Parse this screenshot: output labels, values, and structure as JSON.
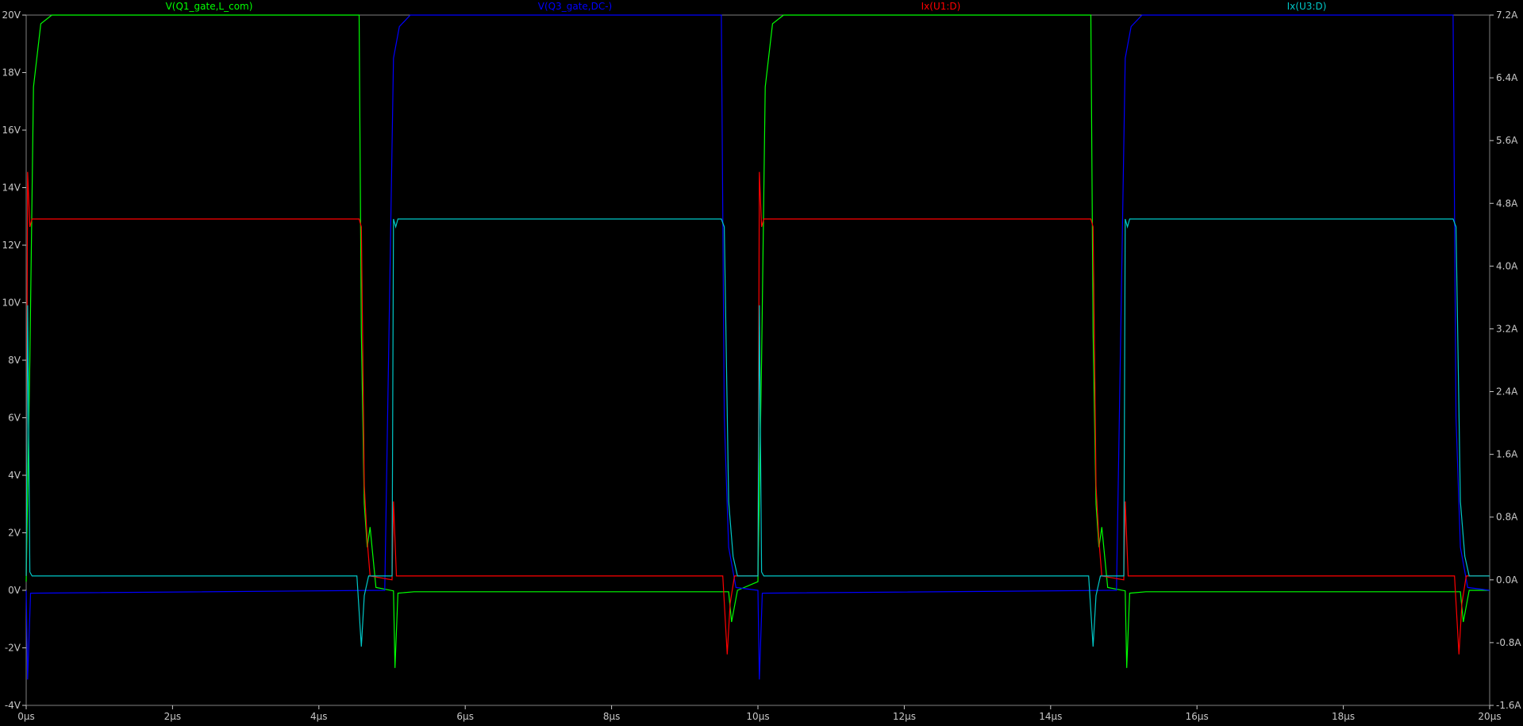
{
  "window": {
    "background": "#000000"
  },
  "chart_data": {
    "type": "line",
    "grid": false,
    "legend_placement": "top",
    "x_axis": {
      "range": [
        0,
        20
      ],
      "unit": "µs",
      "ticks": [
        0,
        2,
        4,
        6,
        8,
        10,
        12,
        14,
        16,
        18,
        20
      ],
      "tick_labels": [
        "0µs",
        "2µs",
        "4µs",
        "6µs",
        "8µs",
        "10µs",
        "12µs",
        "14µs",
        "16µs",
        "18µs",
        "20µs"
      ]
    },
    "y_left": {
      "range": [
        -4,
        20
      ],
      "ticks": [
        -4,
        -2,
        0,
        2,
        4,
        6,
        8,
        10,
        12,
        14,
        16,
        18,
        20
      ],
      "tick_labels": [
        "-4V",
        "-2V",
        "0V",
        "2V",
        "4V",
        "6V",
        "8V",
        "10V",
        "12V",
        "14V",
        "16V",
        "18V",
        "20V"
      ]
    },
    "y_right": {
      "range": [
        -1.6,
        7.2
      ],
      "ticks": [
        -1.6,
        -0.8,
        0.0,
        0.8,
        1.6,
        2.4,
        3.2,
        4.0,
        4.8,
        5.6,
        6.4,
        7.2
      ],
      "tick_labels": [
        "-1.6A",
        "-0.8A",
        "0.0A",
        "0.8A",
        "1.6A",
        "2.4A",
        "3.2A",
        "4.0A",
        "4.8A",
        "5.6A",
        "6.4A",
        "7.2A"
      ]
    },
    "series": [
      {
        "name": "V(Q1_gate,L_com)",
        "color": "#00ff00",
        "axis": "left",
        "points": [
          [
            0,
            0.3
          ],
          [
            0.05,
            8
          ],
          [
            0.1,
            17.5
          ],
          [
            0.2,
            19.7
          ],
          [
            0.35,
            20
          ],
          [
            4.55,
            20
          ],
          [
            4.58,
            9
          ],
          [
            4.62,
            3
          ],
          [
            4.66,
            1.5
          ],
          [
            4.7,
            2.2
          ],
          [
            4.78,
            0.1
          ],
          [
            5.02,
            -0.02
          ],
          [
            5.04,
            -2.7
          ],
          [
            5.08,
            -0.1
          ],
          [
            5.3,
            -0.05
          ],
          [
            9.6,
            -0.05
          ],
          [
            9.64,
            -1.1
          ],
          [
            9.72,
            0
          ],
          [
            10.0,
            0.3
          ],
          [
            10.05,
            8
          ],
          [
            10.1,
            17.5
          ],
          [
            10.2,
            19.7
          ],
          [
            10.35,
            20
          ],
          [
            14.55,
            20
          ],
          [
            14.58,
            9
          ],
          [
            14.62,
            3
          ],
          [
            14.66,
            1.5
          ],
          [
            14.7,
            2.2
          ],
          [
            14.78,
            0.1
          ],
          [
            15.02,
            -0.02
          ],
          [
            15.04,
            -2.7
          ],
          [
            15.08,
            -0.1
          ],
          [
            15.3,
            -0.05
          ],
          [
            19.6,
            -0.05
          ],
          [
            19.64,
            -1.1
          ],
          [
            19.72,
            0
          ],
          [
            20,
            0
          ]
        ]
      },
      {
        "name": "V(Q3_gate,DC-)",
        "color": "#0000ff",
        "axis": "left",
        "points": [
          [
            0,
            0
          ],
          [
            0.02,
            -3.1
          ],
          [
            0.06,
            -0.1
          ],
          [
            4.9,
            0
          ],
          [
            5.02,
            18.5
          ],
          [
            5.1,
            19.6
          ],
          [
            5.25,
            20
          ],
          [
            9.5,
            20
          ],
          [
            9.54,
            6
          ],
          [
            9.6,
            1.5
          ],
          [
            9.7,
            0.1
          ],
          [
            10.0,
            0
          ],
          [
            10.02,
            -3.1
          ],
          [
            10.06,
            -0.1
          ],
          [
            14.9,
            0
          ],
          [
            15.02,
            18.5
          ],
          [
            15.1,
            19.6
          ],
          [
            15.25,
            20
          ],
          [
            19.5,
            20
          ],
          [
            19.54,
            6
          ],
          [
            19.6,
            1.5
          ],
          [
            19.7,
            0.1
          ],
          [
            20,
            0
          ]
        ]
      },
      {
        "name": "Ix(U1:D)",
        "color": "#ff0000",
        "axis": "right",
        "points": [
          [
            0,
            0.05
          ],
          [
            0.02,
            5.2
          ],
          [
            0.05,
            4.5
          ],
          [
            0.08,
            4.6
          ],
          [
            4.55,
            4.6
          ],
          [
            4.58,
            4.5
          ],
          [
            4.62,
            1.2
          ],
          [
            4.66,
            0.5
          ],
          [
            4.7,
            0.05
          ],
          [
            5.0,
            0.0
          ],
          [
            5.02,
            1.0
          ],
          [
            5.06,
            0.05
          ],
          [
            9.52,
            0.05
          ],
          [
            9.58,
            -0.95
          ],
          [
            9.62,
            -0.3
          ],
          [
            9.68,
            0.05
          ],
          [
            10.0,
            0.05
          ],
          [
            10.02,
            5.2
          ],
          [
            10.05,
            4.5
          ],
          [
            10.08,
            4.6
          ],
          [
            14.55,
            4.6
          ],
          [
            14.58,
            4.5
          ],
          [
            14.62,
            1.2
          ],
          [
            14.66,
            0.5
          ],
          [
            14.7,
            0.05
          ],
          [
            15.0,
            0.0
          ],
          [
            15.02,
            1.0
          ],
          [
            15.06,
            0.05
          ],
          [
            19.52,
            0.05
          ],
          [
            19.58,
            -0.95
          ],
          [
            19.62,
            -0.3
          ],
          [
            19.68,
            0.05
          ],
          [
            20,
            0.05
          ]
        ]
      },
      {
        "name": "Ix(U3:D)",
        "color": "#00c8c8",
        "axis": "right",
        "points": [
          [
            0,
            0.05
          ],
          [
            0.02,
            3.5
          ],
          [
            0.05,
            0.1
          ],
          [
            0.08,
            0.05
          ],
          [
            4.52,
            0.05
          ],
          [
            4.58,
            -0.85
          ],
          [
            4.62,
            -0.2
          ],
          [
            4.68,
            0.05
          ],
          [
            5.0,
            0.05
          ],
          [
            5.02,
            4.6
          ],
          [
            5.05,
            4.5
          ],
          [
            5.08,
            4.6
          ],
          [
            9.5,
            4.6
          ],
          [
            9.54,
            4.5
          ],
          [
            9.6,
            1.0
          ],
          [
            9.66,
            0.3
          ],
          [
            9.72,
            0.05
          ],
          [
            10.0,
            0.05
          ],
          [
            10.02,
            3.5
          ],
          [
            10.05,
            0.1
          ],
          [
            10.08,
            0.05
          ],
          [
            14.52,
            0.05
          ],
          [
            14.58,
            -0.85
          ],
          [
            14.62,
            -0.2
          ],
          [
            14.68,
            0.05
          ],
          [
            15.0,
            0.05
          ],
          [
            15.02,
            4.6
          ],
          [
            15.05,
            4.5
          ],
          [
            15.08,
            4.6
          ],
          [
            19.5,
            4.6
          ],
          [
            19.54,
            4.5
          ],
          [
            19.6,
            1.0
          ],
          [
            19.66,
            0.3
          ],
          [
            19.72,
            0.05
          ],
          [
            20,
            0.05
          ]
        ]
      }
    ]
  }
}
